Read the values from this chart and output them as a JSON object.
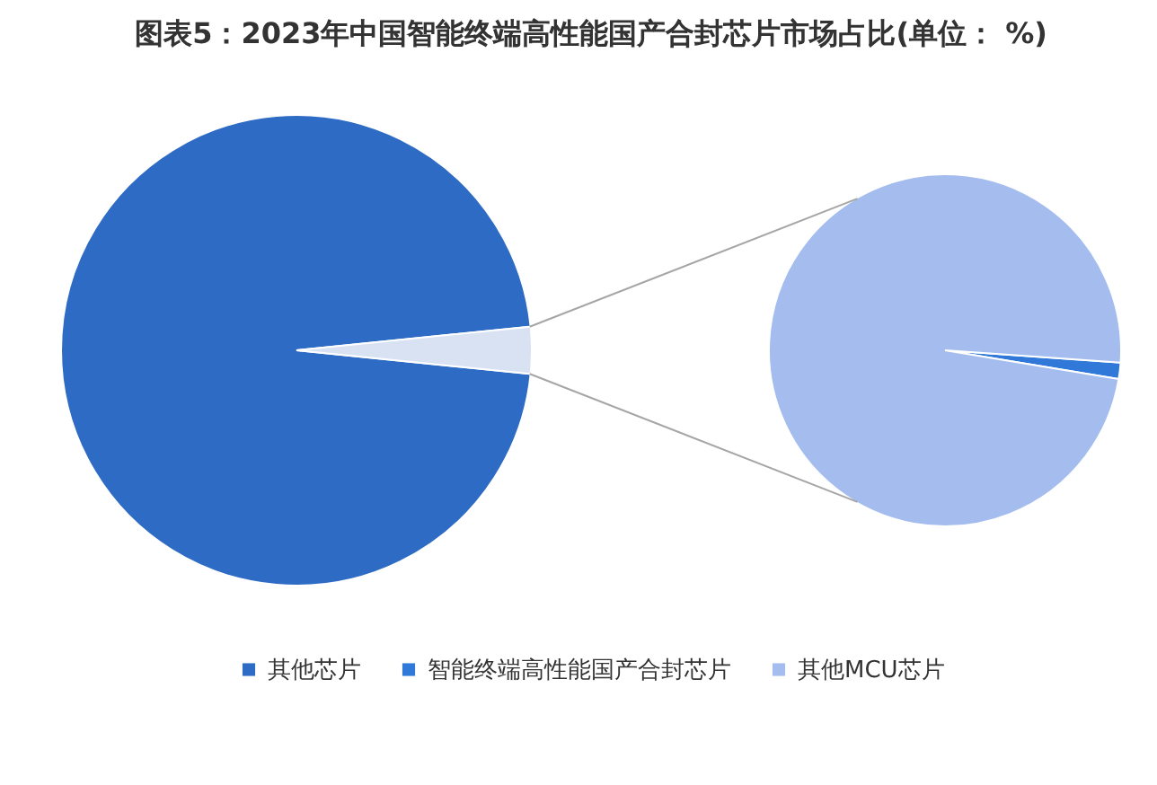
{
  "chart_data": [
    {
      "type": "pie",
      "title": "图表5：2023年中国智能终端高性能国产合封芯片市场占比(单位： %)",
      "categories": [
        "其他芯片",
        null
      ],
      "values": [
        96.8,
        3.2
      ],
      "colors": [
        "#2e6bc4",
        "#d9e2f3"
      ],
      "legend": "bottom"
    },
    {
      "type": "pie",
      "categories": [
        "智能终端高性能国产合封芯片",
        "其他MCU芯片"
      ],
      "values": [
        1.5,
        98.5
      ],
      "colors": [
        "#3079d8",
        "#a4bdee"
      ],
      "legend": "bottom"
    }
  ]
}
